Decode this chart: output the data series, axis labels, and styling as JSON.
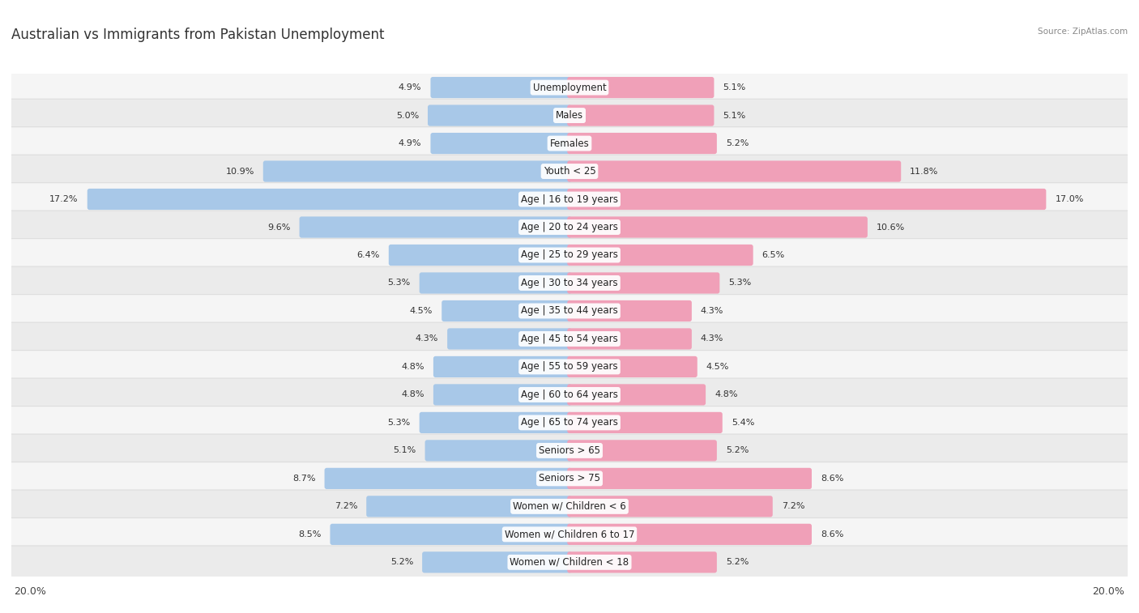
{
  "title": "Australian vs Immigrants from Pakistan Unemployment",
  "source": "Source: ZipAtlas.com",
  "categories": [
    "Unemployment",
    "Males",
    "Females",
    "Youth < 25",
    "Age | 16 to 19 years",
    "Age | 20 to 24 years",
    "Age | 25 to 29 years",
    "Age | 30 to 34 years",
    "Age | 35 to 44 years",
    "Age | 45 to 54 years",
    "Age | 55 to 59 years",
    "Age | 60 to 64 years",
    "Age | 65 to 74 years",
    "Seniors > 65",
    "Seniors > 75",
    "Women w/ Children < 6",
    "Women w/ Children 6 to 17",
    "Women w/ Children < 18"
  ],
  "australian": [
    4.9,
    5.0,
    4.9,
    10.9,
    17.2,
    9.6,
    6.4,
    5.3,
    4.5,
    4.3,
    4.8,
    4.8,
    5.3,
    5.1,
    8.7,
    7.2,
    8.5,
    5.2
  ],
  "pakistan": [
    5.1,
    5.1,
    5.2,
    11.8,
    17.0,
    10.6,
    6.5,
    5.3,
    4.3,
    4.3,
    4.5,
    4.8,
    5.4,
    5.2,
    8.6,
    7.2,
    8.6,
    5.2
  ],
  "australian_color": "#a8c8e8",
  "pakistan_color": "#f0a0b8",
  "bar_max": 20.0,
  "title_fontsize": 12,
  "label_fontsize": 8.5,
  "value_fontsize": 8.0,
  "row_colors": [
    "#f5f5f5",
    "#ebebeb"
  ]
}
